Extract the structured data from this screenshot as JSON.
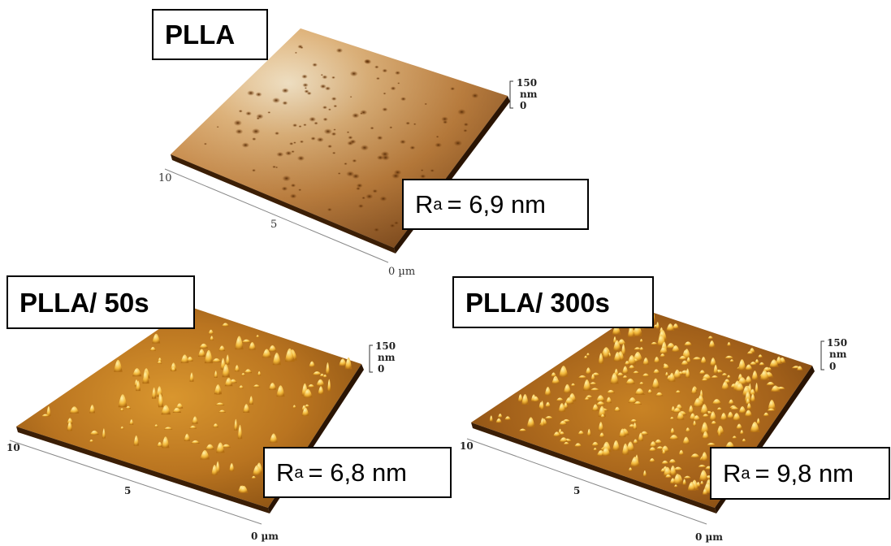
{
  "panels": [
    {
      "title": "PLLA",
      "ra_symbol": "R",
      "ra_sub": "a",
      "ra_text": "= 6,9 nm",
      "axis_ticks": [
        "10",
        "5",
        "0 µm"
      ],
      "z_scale": {
        "max": "150",
        "unit": "nm",
        "min": "0"
      }
    },
    {
      "title": "PLLA/ 50s",
      "ra_symbol": "R",
      "ra_sub": "a",
      "ra_text": "= 6,8 nm",
      "axis_ticks": [
        "10",
        "5",
        "0 µm"
      ],
      "z_scale": {
        "max": "150",
        "unit": "nm",
        "min": "0"
      }
    },
    {
      "title": "PLLA/ 300s",
      "ra_symbol": "R",
      "ra_sub": "a",
      "ra_text": "= 9,8 nm",
      "axis_ticks": [
        "10",
        "5",
        "0 µm"
      ],
      "z_scale": {
        "max": "150",
        "unit": "nm",
        "min": "0"
      }
    }
  ],
  "colors": {
    "surface_light": "#f7e2bd",
    "surface_mid": "#c9822c",
    "surface_dark": "#6e3c0c",
    "peak": "#f7c545"
  }
}
